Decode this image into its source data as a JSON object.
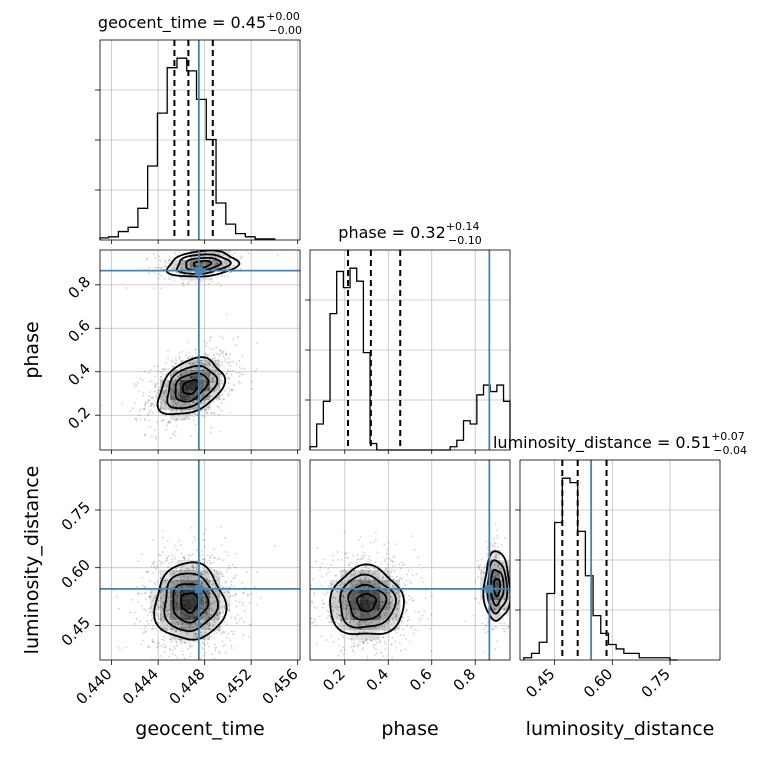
{
  "chart_data": {
    "type": "corner",
    "parameters": [
      "geocent_time",
      "phase",
      "luminosity_distance"
    ],
    "truths": {
      "geocent_time": 0.4475,
      "phase": 0.865,
      "luminosity_distance": 0.545
    },
    "ranges": {
      "geocent_time": [
        0.439,
        0.4562
      ],
      "phase": [
        0.04,
        0.96
      ],
      "luminosity_distance": [
        0.36,
        0.88
      ]
    },
    "ticks": {
      "geocent_time": [
        "0.440",
        "0.444",
        "0.448",
        "0.452",
        "0.456"
      ],
      "phase": [
        "0.2",
        "0.4",
        "0.6",
        "0.8"
      ],
      "luminosity_distance": [
        "0.45",
        "0.60",
        "0.75"
      ]
    },
    "marginals": {
      "geocent_time": {
        "title_main": "geocent_time = 0.45",
        "title_sup": "+0.00",
        "title_sub": "−0.00",
        "quantiles": [
          0.4454,
          0.4466,
          0.4487
        ],
        "bin_edges_start": 0.4389,
        "bin_width": 0.00084,
        "counts": [
          2,
          3,
          8,
          12,
          30,
          70,
          120,
          163,
          172,
          160,
          133,
          95,
          35,
          15,
          6,
          3,
          1,
          1
        ]
      },
      "phase": {
        "title_main": "phase = 0.32",
        "title_sup": "+0.14",
        "title_sub": "−0.10",
        "quantiles": [
          0.215,
          0.32,
          0.455
        ],
        "bin_edges_start": 0.04,
        "bin_width": 0.0307,
        "counts": [
          1,
          8,
          15,
          42,
          55,
          50,
          56,
          52,
          30,
          2,
          0,
          0,
          0,
          0,
          0,
          0,
          0,
          0,
          0,
          0,
          0,
          1,
          3,
          9,
          8,
          17,
          20,
          18,
          20,
          15
        ]
      },
      "luminosity_distance": {
        "title_main": "luminosity_distance = 0.51",
        "title_sup": "+0.07",
        "title_sub": "−0.04",
        "quantiles": [
          0.47,
          0.51,
          0.585
        ],
        "bin_edges_start": 0.37,
        "bin_width": 0.02,
        "counts": [
          1,
          3,
          8,
          30,
          62,
          82,
          80,
          58,
          38,
          20,
          12,
          7,
          5,
          3,
          3,
          1,
          1,
          1,
          1,
          0
        ]
      }
    },
    "joints": [
      {
        "x": "geocent_time",
        "y": "phase",
        "clusters": [
          {
            "mx": 0.4468,
            "my": 0.33,
            "sx": 0.0014,
            "sy": 0.065,
            "n": 1100,
            "rho": 0.35
          },
          {
            "mx": 0.4478,
            "my": 0.895,
            "sx": 0.0015,
            "sy": 0.03,
            "n": 350,
            "rho": 0.2
          }
        ]
      },
      {
        "x": "geocent_time",
        "y": "luminosity_distance",
        "clusters": [
          {
            "mx": 0.4467,
            "my": 0.51,
            "sx": 0.0015,
            "sy": 0.05,
            "n": 1400,
            "rho": 0.0
          }
        ]
      },
      {
        "x": "phase",
        "y": "luminosity_distance",
        "clusters": [
          {
            "mx": 0.3,
            "my": 0.51,
            "sx": 0.085,
            "sy": 0.045,
            "n": 1100,
            "rho": 0.0
          },
          {
            "mx": 0.9,
            "my": 0.55,
            "sx": 0.03,
            "sy": 0.045,
            "n": 330,
            "rho": 0.0
          }
        ]
      }
    ]
  }
}
